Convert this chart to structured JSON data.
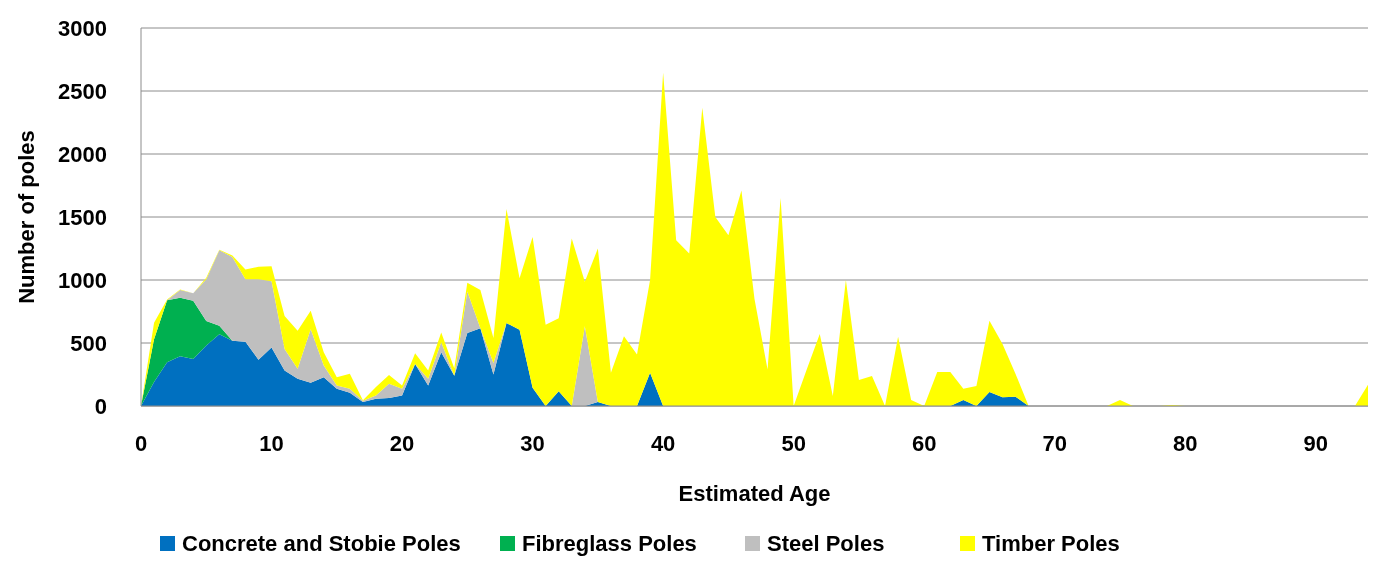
{
  "chart_data": {
    "type": "area",
    "stacked": true,
    "xlabel": "Estimated Age",
    "ylabel": "Number of poles",
    "x": [
      0,
      1,
      2,
      3,
      4,
      5,
      6,
      7,
      8,
      9,
      10,
      11,
      12,
      13,
      14,
      15,
      16,
      17,
      18,
      19,
      20,
      21,
      22,
      23,
      24,
      25,
      26,
      27,
      28,
      29,
      30,
      31,
      32,
      33,
      34,
      35,
      36,
      37,
      38,
      39,
      40,
      41,
      42,
      43,
      44,
      45,
      46,
      47,
      48,
      49,
      50,
      51,
      52,
      53,
      54,
      55,
      56,
      57,
      58,
      59,
      60,
      61,
      62,
      63,
      64,
      65,
      66,
      67,
      68,
      69,
      70,
      71,
      72,
      73,
      74,
      75,
      76,
      77,
      78,
      79,
      80,
      81,
      82,
      83,
      84,
      85,
      86,
      87,
      88,
      89,
      90,
      91,
      92,
      93,
      94
    ],
    "xlim": [
      0,
      94
    ],
    "xticks": [
      0,
      10,
      20,
      30,
      40,
      50,
      60,
      70,
      80,
      90
    ],
    "ylim": [
      0,
      3000
    ],
    "yticks": [
      0,
      500,
      1000,
      1500,
      2000,
      2500,
      3000
    ],
    "grid": "y",
    "legend": "bottom",
    "series": [
      {
        "name": "Concrete and Stobie Poles",
        "color": "#0070c0",
        "values": [
          0,
          190,
          347,
          395,
          373,
          480,
          570,
          518,
          510,
          368,
          465,
          281,
          216,
          184,
          229,
          137,
          105,
          32,
          58,
          63,
          84,
          334,
          163,
          426,
          240,
          579,
          618,
          250,
          658,
          605,
          145,
          0,
          118,
          0,
          0,
          32,
          0,
          0,
          0,
          263,
          0,
          0,
          0,
          0,
          0,
          0,
          0,
          0,
          0,
          0,
          0,
          0,
          0,
          0,
          0,
          0,
          0,
          0,
          0,
          0,
          0,
          0,
          0,
          48,
          0,
          111,
          70,
          73,
          0,
          0,
          0,
          0,
          0,
          0,
          0,
          0,
          0,
          0,
          0,
          0,
          0,
          0,
          0,
          0,
          0,
          0,
          0,
          0,
          0,
          0,
          0,
          0,
          0,
          0,
          0
        ]
      },
      {
        "name": "Fibreglass Poles",
        "color": "#00b050",
        "values": [
          0,
          340,
          493,
          465,
          462,
          195,
          66,
          0,
          0,
          0,
          0,
          0,
          0,
          0,
          0,
          0,
          0,
          0,
          0,
          0,
          0,
          0,
          0,
          0,
          0,
          0,
          0,
          0,
          0,
          0,
          0,
          0,
          0,
          0,
          0,
          0,
          0,
          0,
          0,
          0,
          0,
          0,
          0,
          0,
          0,
          0,
          0,
          0,
          0,
          0,
          0,
          0,
          0,
          0,
          0,
          0,
          0,
          0,
          0,
          0,
          0,
          0,
          0,
          0,
          0,
          0,
          0,
          0,
          0,
          0,
          0,
          0,
          0,
          0,
          0,
          0,
          0,
          0,
          0,
          0,
          0,
          0,
          0,
          0,
          0,
          0,
          0,
          0,
          0,
          0,
          0,
          0,
          0,
          0,
          0
        ]
      },
      {
        "name": "Steel Poles",
        "color": "#bfbfbf",
        "values": [
          0,
          0,
          0,
          60,
          60,
          330,
          600,
          665,
          495,
          637,
          525,
          171,
          79,
          426,
          92,
          26,
          32,
          10,
          26,
          113,
          53,
          0,
          53,
          79,
          0,
          329,
          0,
          92,
          0,
          0,
          0,
          0,
          0,
          0,
          632,
          0,
          0,
          0,
          0,
          0,
          0,
          0,
          0,
          0,
          0,
          0,
          0,
          0,
          0,
          0,
          0,
          0,
          0,
          0,
          0,
          0,
          0,
          0,
          0,
          0,
          0,
          0,
          0,
          0,
          0,
          0,
          0,
          0,
          0,
          0,
          0,
          0,
          0,
          0,
          0,
          0,
          0,
          0,
          0,
          0,
          0,
          0,
          0,
          0,
          0,
          0,
          0,
          0,
          0,
          0,
          0,
          0,
          0,
          0,
          0
        ]
      },
      {
        "name": "Timber Poles",
        "color": "#ffff00",
        "values": [
          0,
          130,
          5,
          5,
          0,
          13,
          5,
          11,
          78,
          100,
          120,
          263,
          302,
          145,
          105,
          66,
          118,
          3,
          66,
          71,
          26,
          84,
          65,
          79,
          60,
          71,
          303,
          197,
          905,
          408,
          1197,
          645,
          579,
          1329,
          355,
          1218,
          263,
          553,
          408,
          737,
          2645,
          1316,
          1211,
          2368,
          1500,
          1355,
          1711,
          850,
          290,
          1650,
          0,
          290,
          572,
          80,
          1000,
          207,
          239,
          0,
          550,
          48,
          0,
          270,
          270,
          89,
          159,
          566,
          423,
          181,
          0,
          0,
          0,
          0,
          0,
          0,
          0,
          48,
          0,
          0,
          0,
          8,
          0,
          0,
          0,
          0,
          0,
          0,
          0,
          0,
          0,
          0,
          0,
          0,
          0,
          0,
          169
        ]
      }
    ]
  }
}
